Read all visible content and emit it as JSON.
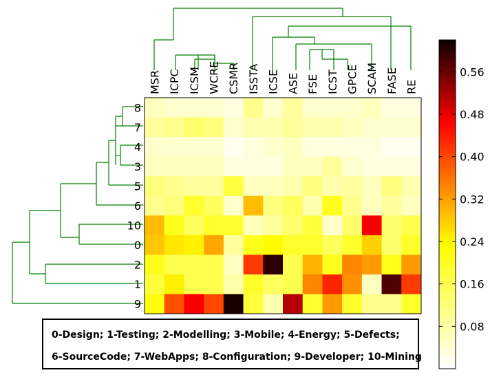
{
  "chart_data": {
    "type": "heatmap",
    "columns": [
      "MSR",
      "ICPC",
      "ICSM",
      "WCRE",
      "CSMR",
      "ISSTA",
      "ICSE",
      "ASE",
      "FSE",
      "ICST",
      "GPCE",
      "SCAM",
      "FASE",
      "RE"
    ],
    "rows": [
      "8",
      "7",
      "4",
      "3",
      "5",
      "6",
      "10",
      "0",
      "2",
      "1",
      "9"
    ],
    "values": [
      [
        0.04,
        0.03,
        0.03,
        0.03,
        0.02,
        0.07,
        0.03,
        0.06,
        0.03,
        0.03,
        0.03,
        0.04,
        0.02,
        0.02
      ],
      [
        0.06,
        0.07,
        0.09,
        0.08,
        0.03,
        0.05,
        0.05,
        0.06,
        0.05,
        0.05,
        0.04,
        0.03,
        0.03,
        0.03
      ],
      [
        0.03,
        0.03,
        0.03,
        0.03,
        0.01,
        0.02,
        0.03,
        0.04,
        0.02,
        0.02,
        0.02,
        0.02,
        0.01,
        0.01
      ],
      [
        0.04,
        0.04,
        0.04,
        0.04,
        0.02,
        0.02,
        0.02,
        0.04,
        0.04,
        0.06,
        0.03,
        0.02,
        0.02,
        0.02
      ],
      [
        0.08,
        0.07,
        0.06,
        0.06,
        0.12,
        0.04,
        0.04,
        0.05,
        0.08,
        0.05,
        0.06,
        0.04,
        0.08,
        0.05
      ],
      [
        0.07,
        0.08,
        0.13,
        0.1,
        0.03,
        0.22,
        0.08,
        0.1,
        0.05,
        0.14,
        0.07,
        0.04,
        0.06,
        0.04
      ],
      [
        0.22,
        0.14,
        0.1,
        0.13,
        0.13,
        0.04,
        0.06,
        0.09,
        0.12,
        0.03,
        0.09,
        0.4,
        0.09,
        0.11
      ],
      [
        0.21,
        0.18,
        0.17,
        0.24,
        0.06,
        0.14,
        0.16,
        0.13,
        0.13,
        0.1,
        0.13,
        0.2,
        0.09,
        0.13
      ],
      [
        0.14,
        0.11,
        0.11,
        0.11,
        0.04,
        0.34,
        0.58,
        0.11,
        0.23,
        0.14,
        0.27,
        0.25,
        0.14,
        0.25
      ],
      [
        0.12,
        0.17,
        0.11,
        0.11,
        0.05,
        0.13,
        0.1,
        0.11,
        0.27,
        0.36,
        0.26,
        0.04,
        0.55,
        0.34
      ],
      [
        0.15,
        0.32,
        0.4,
        0.33,
        0.6,
        0.12,
        0.05,
        0.46,
        0.13,
        0.25,
        0.13,
        0.07,
        0.07,
        0.13
      ]
    ],
    "colorbar": {
      "min": 0.0,
      "max": 0.62,
      "ticks": [
        0.08,
        0.16,
        0.24,
        0.32,
        0.4,
        0.48,
        0.56
      ],
      "tick_labels": [
        "0.08",
        "0.16",
        "0.24",
        "0.32",
        "0.40",
        "0.48",
        "0.56"
      ],
      "colormap": "hot_r"
    },
    "dendrogram_color": "#007f00",
    "legend": {
      "line1": "0-Design; 1-Testing; 2-Modelling; 3-Mobile; 4-Energy; 5-Defects;",
      "line2": "6-SourceCode; 7-WebApps; 8-Configuration; 9-Developer; 10-Mining"
    }
  }
}
